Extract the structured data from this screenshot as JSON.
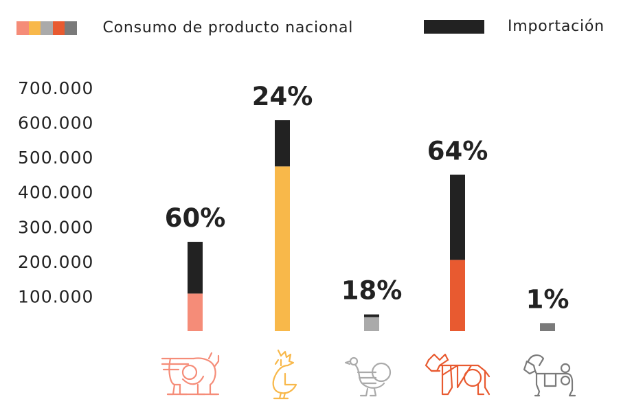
{
  "legend": {
    "national_label": "Consumo de producto nacional",
    "import_label": "Importación",
    "national_swatch_colors": [
      "#f58c78",
      "#f8b84a",
      "#aaaaaa",
      "#e85a30",
      "#7a7a7a"
    ],
    "import_color": "#222222"
  },
  "chart_data": {
    "type": "bar",
    "stacked": true,
    "categories": [
      "pork-icon",
      "chicken-icon",
      "turkey-icon",
      "beef-icon",
      "goat-icon"
    ],
    "y_ticks": [
      "100.000",
      "200.000",
      "300.000",
      "400.000",
      "500.000",
      "600.000",
      "700.000"
    ],
    "y_tick_values": [
      100000,
      200000,
      300000,
      400000,
      500000,
      600000,
      700000
    ],
    "ylim": [
      0,
      700000
    ],
    "grid": false,
    "legend_position": "top",
    "series": [
      {
        "name": "Consumo de producto nacional",
        "values": [
          108000,
          474000,
          40000,
          205000,
          23000
        ],
        "colors": [
          "#f58c78",
          "#f8b84a",
          "#aaaaaa",
          "#e85a30",
          "#7a7a7a"
        ]
      },
      {
        "name": "Importación",
        "values": [
          149000,
          133000,
          8000,
          245000,
          0
        ],
        "color": "#222222"
      }
    ],
    "data_labels": [
      "60%",
      "24%",
      "18%",
      "64%",
      "1%"
    ]
  }
}
